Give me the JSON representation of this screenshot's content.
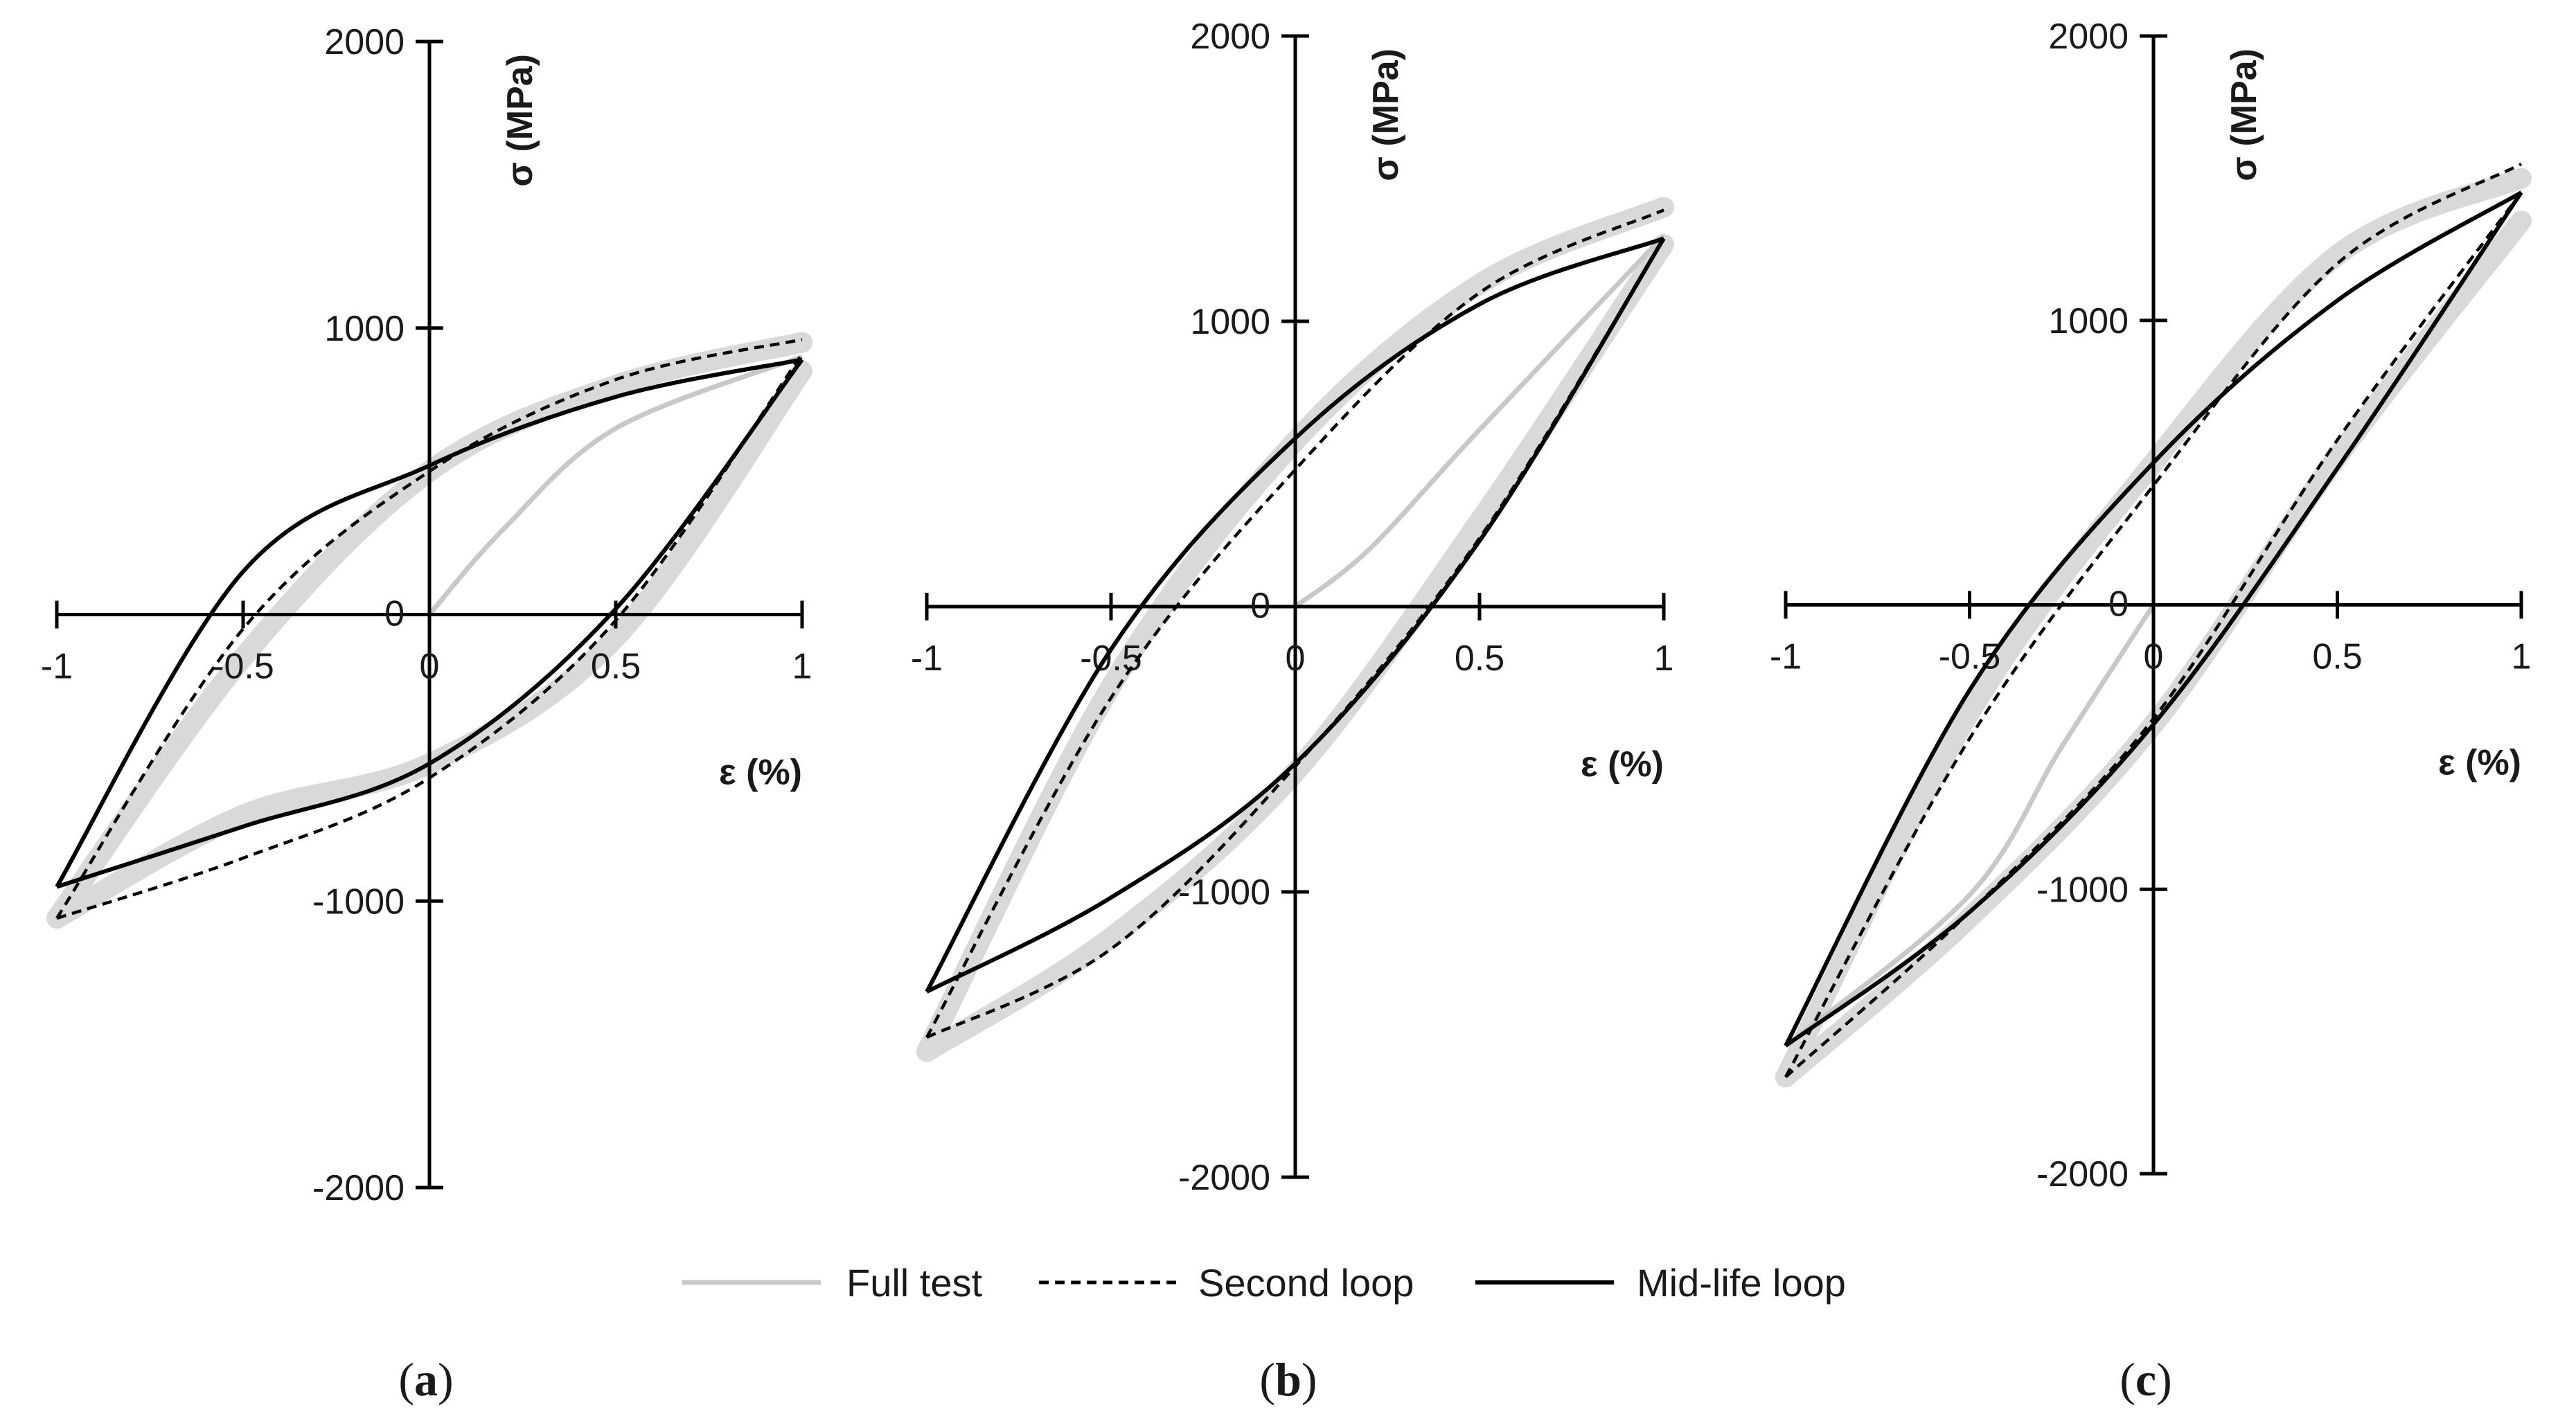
{
  "legend": {
    "full_test": "Full test",
    "second_loop": "Second loop",
    "mid_life_loop": "Mid-life loop"
  },
  "colors": {
    "full_test": "#c8c8c8",
    "band": "#d9d9d9",
    "second_loop": "#000000",
    "mid_life_loop": "#000000",
    "axis": "#000000"
  },
  "chart_data": [
    {
      "type": "line",
      "panel": "a",
      "caption_letter": "a",
      "xlabel": "ε (%)",
      "ylabel": "σ (MPa)",
      "xlim": [
        -1,
        1
      ],
      "ylim": [
        -2000,
        2000
      ],
      "x_ticks": [
        "-1",
        "-0.5",
        "0",
        "0.5",
        "1"
      ],
      "y_ticks": [
        "2000",
        "1000",
        "0",
        "-1000",
        "-2000"
      ],
      "series": [
        {
          "name": "Full test",
          "style": "band",
          "upper": [
            [
              -1,
              -1060
            ],
            [
              -0.5,
              -150
            ],
            [
              0,
              500
            ],
            [
              0.5,
              800
            ],
            [
              1,
              950
            ]
          ],
          "lower": [
            [
              -1,
              -1060
            ],
            [
              -0.5,
              -700
            ],
            [
              0,
              -520
            ],
            [
              0.5,
              -80
            ],
            [
              1,
              850
            ]
          ]
        },
        {
          "name": "Second loop",
          "style": "dashed",
          "upper": [
            [
              -1,
              -1060
            ],
            [
              -0.5,
              -50
            ],
            [
              0,
              500
            ],
            [
              0.5,
              820
            ],
            [
              1,
              960
            ]
          ],
          "lower": [
            [
              -1,
              -1060
            ],
            [
              -0.5,
              -850
            ],
            [
              0,
              -570
            ],
            [
              0.5,
              -20
            ],
            [
              1,
              910
            ]
          ]
        },
        {
          "name": "Mid-life loop",
          "style": "solid",
          "upper": [
            [
              -1,
              -950
            ],
            [
              -0.5,
              150
            ],
            [
              0,
              520
            ],
            [
              0.5,
              760
            ],
            [
              1,
              890
            ]
          ],
          "lower": [
            [
              -1,
              -950
            ],
            [
              -0.5,
              -740
            ],
            [
              0,
              -520
            ],
            [
              0.5,
              20
            ],
            [
              1,
              890
            ]
          ]
        },
        {
          "name": "Full test",
          "style": "initial",
          "points": [
            [
              0,
              0
            ],
            [
              0.2,
              300
            ],
            [
              0.5,
              650
            ],
            [
              1,
              900
            ]
          ]
        }
      ]
    },
    {
      "type": "line",
      "panel": "b",
      "caption_letter": "b",
      "xlabel": "ε (%)",
      "ylabel": "σ (MPa)",
      "xlim": [
        -1,
        1
      ],
      "ylim": [
        -2000,
        2000
      ],
      "x_ticks": [
        "-1",
        "-0.5",
        "0",
        "0.5",
        "1"
      ],
      "y_ticks": [
        "2000",
        "1000",
        "0",
        "-1000",
        "-2000"
      ],
      "series": [
        {
          "name": "Full test",
          "style": "band",
          "upper": [
            [
              -1,
              -1560
            ],
            [
              -0.5,
              -280
            ],
            [
              0,
              580
            ],
            [
              0.5,
              1130
            ],
            [
              1,
              1400
            ]
          ],
          "lower": [
            [
              -1,
              -1560
            ],
            [
              -0.5,
              -1160
            ],
            [
              0,
              -580
            ],
            [
              0.5,
              300
            ],
            [
              1,
              1270
            ]
          ]
        },
        {
          "name": "Second loop",
          "style": "dashed",
          "upper": [
            [
              -1,
              -1510
            ],
            [
              -0.5,
              -320
            ],
            [
              0,
              480
            ],
            [
              0.5,
              1100
            ],
            [
              1,
              1390
            ]
          ],
          "lower": [
            [
              -1,
              -1510
            ],
            [
              -0.5,
              -1200
            ],
            [
              0,
              -560
            ],
            [
              0.5,
              240
            ],
            [
              1,
              1290
            ]
          ]
        },
        {
          "name": "Mid-life loop",
          "style": "solid",
          "upper": [
            [
              -1,
              -1350
            ],
            [
              -0.5,
              -150
            ],
            [
              0,
              590
            ],
            [
              0.5,
              1060
            ],
            [
              1,
              1290
            ]
          ],
          "lower": [
            [
              -1,
              -1350
            ],
            [
              -0.5,
              -1020
            ],
            [
              0,
              -550
            ],
            [
              0.5,
              230
            ],
            [
              1,
              1290
            ]
          ]
        },
        {
          "name": "Full test",
          "style": "initial",
          "points": [
            [
              0,
              0
            ],
            [
              0.2,
              200
            ],
            [
              0.5,
              620
            ],
            [
              1,
              1300
            ]
          ]
        }
      ]
    },
    {
      "type": "line",
      "panel": "c",
      "caption_letter": "c",
      "xlabel": "ε (%)",
      "ylabel": "σ (MPa)",
      "xlim": [
        -1,
        1
      ],
      "ylim": [
        -2000,
        2000
      ],
      "x_ticks": [
        "-1",
        "-0.5",
        "0",
        "0.5",
        "1"
      ],
      "y_ticks": [
        "2000",
        "1000",
        "0",
        "-1000",
        "-2000"
      ],
      "series": [
        {
          "name": "Full test",
          "style": "band",
          "upper": [
            [
              -1,
              -1660
            ],
            [
              -0.5,
              -380
            ],
            [
              0,
              500
            ],
            [
              0.5,
              1230
            ],
            [
              1,
              1500
            ]
          ],
          "lower": [
            [
              -1,
              -1660
            ],
            [
              -0.5,
              -1100
            ],
            [
              0,
              -420
            ],
            [
              0.5,
              520
            ],
            [
              1,
              1350
            ]
          ]
        },
        {
          "name": "Second loop",
          "style": "dashed",
          "upper": [
            [
              -1,
              -1660
            ],
            [
              -0.5,
              -470
            ],
            [
              0,
              420
            ],
            [
              0.5,
              1200
            ],
            [
              1,
              1550
            ]
          ],
          "lower": [
            [
              -1,
              -1660
            ],
            [
              -0.5,
              -1080
            ],
            [
              0,
              -400
            ],
            [
              0.5,
              580
            ],
            [
              1,
              1450
            ]
          ]
        },
        {
          "name": "Mid-life loop",
          "style": "solid",
          "upper": [
            [
              -1,
              -1550
            ],
            [
              -0.5,
              -300
            ],
            [
              0,
              500
            ],
            [
              0.5,
              1070
            ],
            [
              1,
              1450
            ]
          ],
          "lower": [
            [
              -1,
              -1550
            ],
            [
              -0.5,
              -1080
            ],
            [
              0,
              -420
            ],
            [
              0.5,
              480
            ],
            [
              1,
              1450
            ]
          ]
        },
        {
          "name": "Full test",
          "style": "initial",
          "points": [
            [
              0,
              0
            ],
            [
              -0.25,
              -500
            ],
            [
              -0.5,
              -1020
            ],
            [
              -1,
              -1550
            ]
          ]
        }
      ]
    }
  ]
}
